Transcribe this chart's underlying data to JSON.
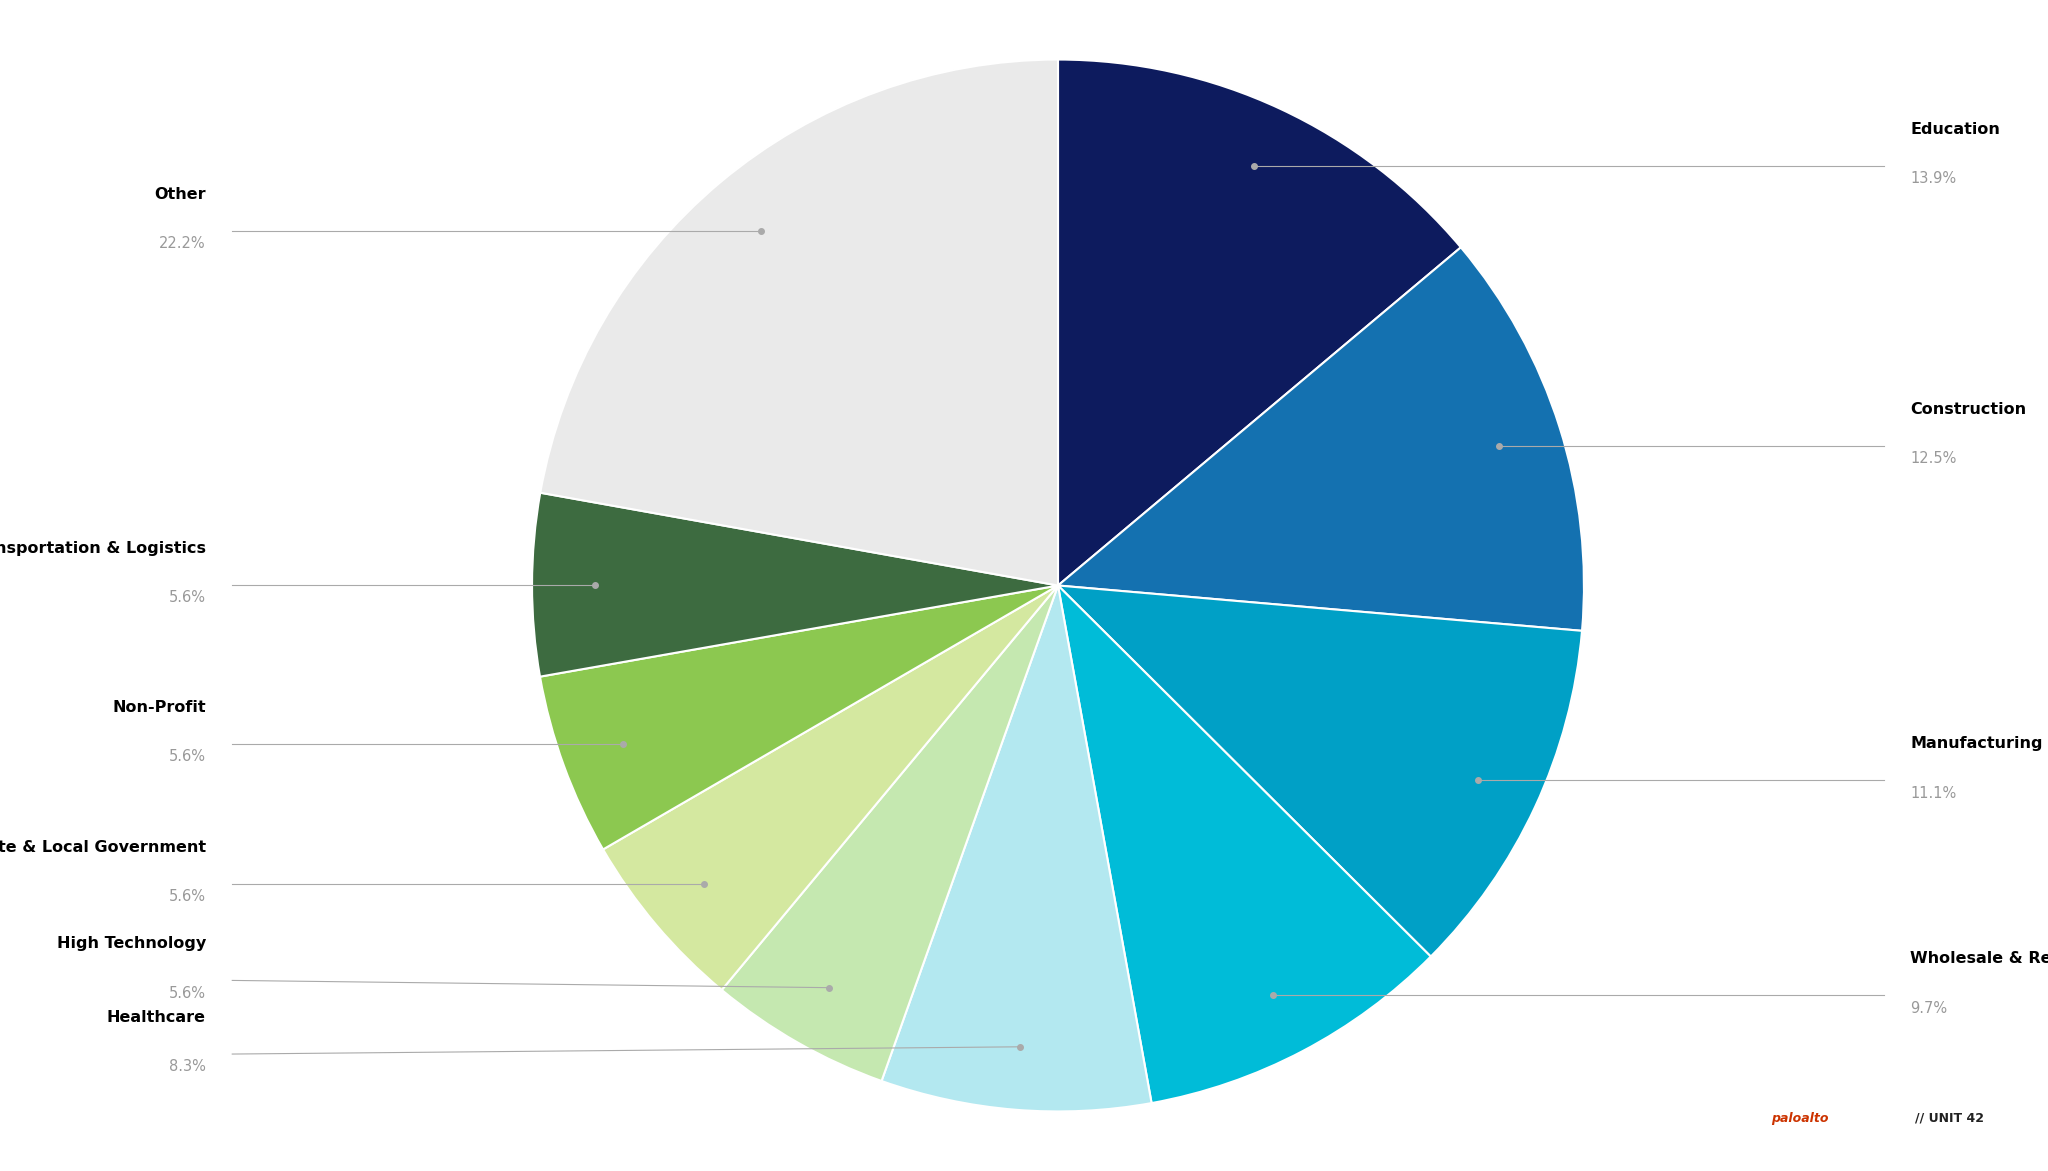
{
  "labels": [
    "Education",
    "Construction",
    "Manufacturing",
    "Wholesale & Retail",
    "Healthcare",
    "High Technology",
    "State & Local Government",
    "Non-Profit",
    "Transportation & Logistics",
    "Other"
  ],
  "values": [
    13.9,
    12.5,
    11.1,
    9.7,
    8.3,
    5.6,
    5.6,
    5.6,
    5.6,
    22.2
  ],
  "colors": [
    "#0d1b5e",
    "#1471b0",
    "#00a0c6",
    "#00bcd8",
    "#b3e8f0",
    "#c5e8b0",
    "#d4e8a0",
    "#8cc850",
    "#3d6b40",
    "#eaeaea"
  ],
  "pct_color": "#999999",
  "background_color": "#ffffff",
  "startangle": 90,
  "figsize": [
    20.48,
    11.71
  ],
  "label_positions": [
    {
      "label": "Education",
      "pct": "13.9%",
      "side": "right",
      "yl_override": null
    },
    {
      "label": "Construction",
      "pct": "12.5%",
      "side": "right",
      "yl_override": null
    },
    {
      "label": "Manufacturing",
      "pct": "11.1%",
      "side": "right",
      "yl_override": null
    },
    {
      "label": "Wholesale & Retail",
      "pct": "9.7%",
      "side": "right",
      "yl_override": null
    },
    {
      "label": "Healthcare",
      "pct": "8.3%",
      "side": "left",
      "yl_override": null
    },
    {
      "label": "High Technology",
      "pct": "5.6%",
      "side": "left",
      "yl_override": null
    },
    {
      "label": "State & Local Government",
      "pct": "5.6%",
      "side": "left",
      "yl_override": null
    },
    {
      "label": "Non-Profit",
      "pct": "5.6%",
      "side": "left",
      "yl_override": null
    },
    {
      "label": "Transportation & Logistics",
      "pct": "5.6%",
      "side": "left",
      "yl_override": null
    },
    {
      "label": "Other",
      "pct": "22.2%",
      "side": "left",
      "yl_override": null
    }
  ]
}
